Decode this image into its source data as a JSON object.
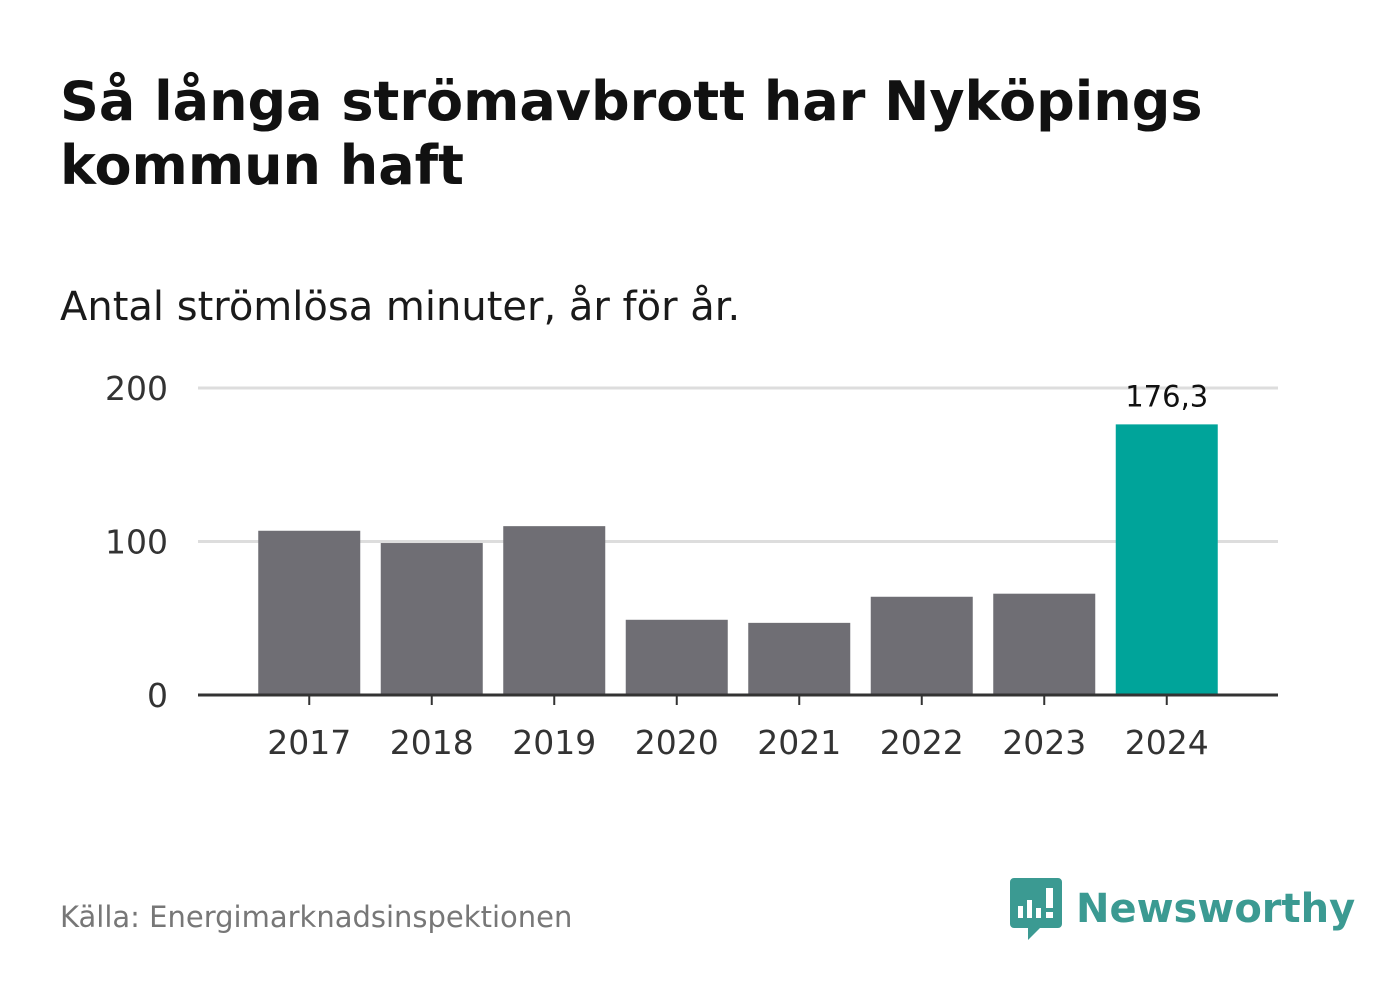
{
  "header": {
    "title": "Så långa strömavbrott har Nyköpings kommun haft",
    "subtitle": "Antal strömlösa minuter, år för år."
  },
  "footer": {
    "source": "Källa: Energimarknadsinspektionen",
    "brand": "Newsworthy",
    "brand_icon": "chart-speech-bubble-icon"
  },
  "colors": {
    "bar": "#6f6e74",
    "highlight": "#00a49a",
    "grid": "#dddddd",
    "axis": "#333333",
    "brand": "#3b9a92"
  },
  "chart_data": {
    "type": "bar",
    "categories": [
      "2017",
      "2018",
      "2019",
      "2020",
      "2021",
      "2022",
      "2023",
      "2024"
    ],
    "values": [
      107,
      99,
      110,
      49,
      47,
      64,
      66,
      176.3
    ],
    "highlight_index": 7,
    "data_labels": [
      "",
      "",
      "",
      "",
      "",
      "",
      "",
      "176,3"
    ],
    "ylim": [
      0,
      200
    ],
    "yticks": [
      0,
      100,
      200
    ],
    "ytick_labels": [
      "0",
      "100",
      "200"
    ],
    "grid": true,
    "legend": "none"
  }
}
